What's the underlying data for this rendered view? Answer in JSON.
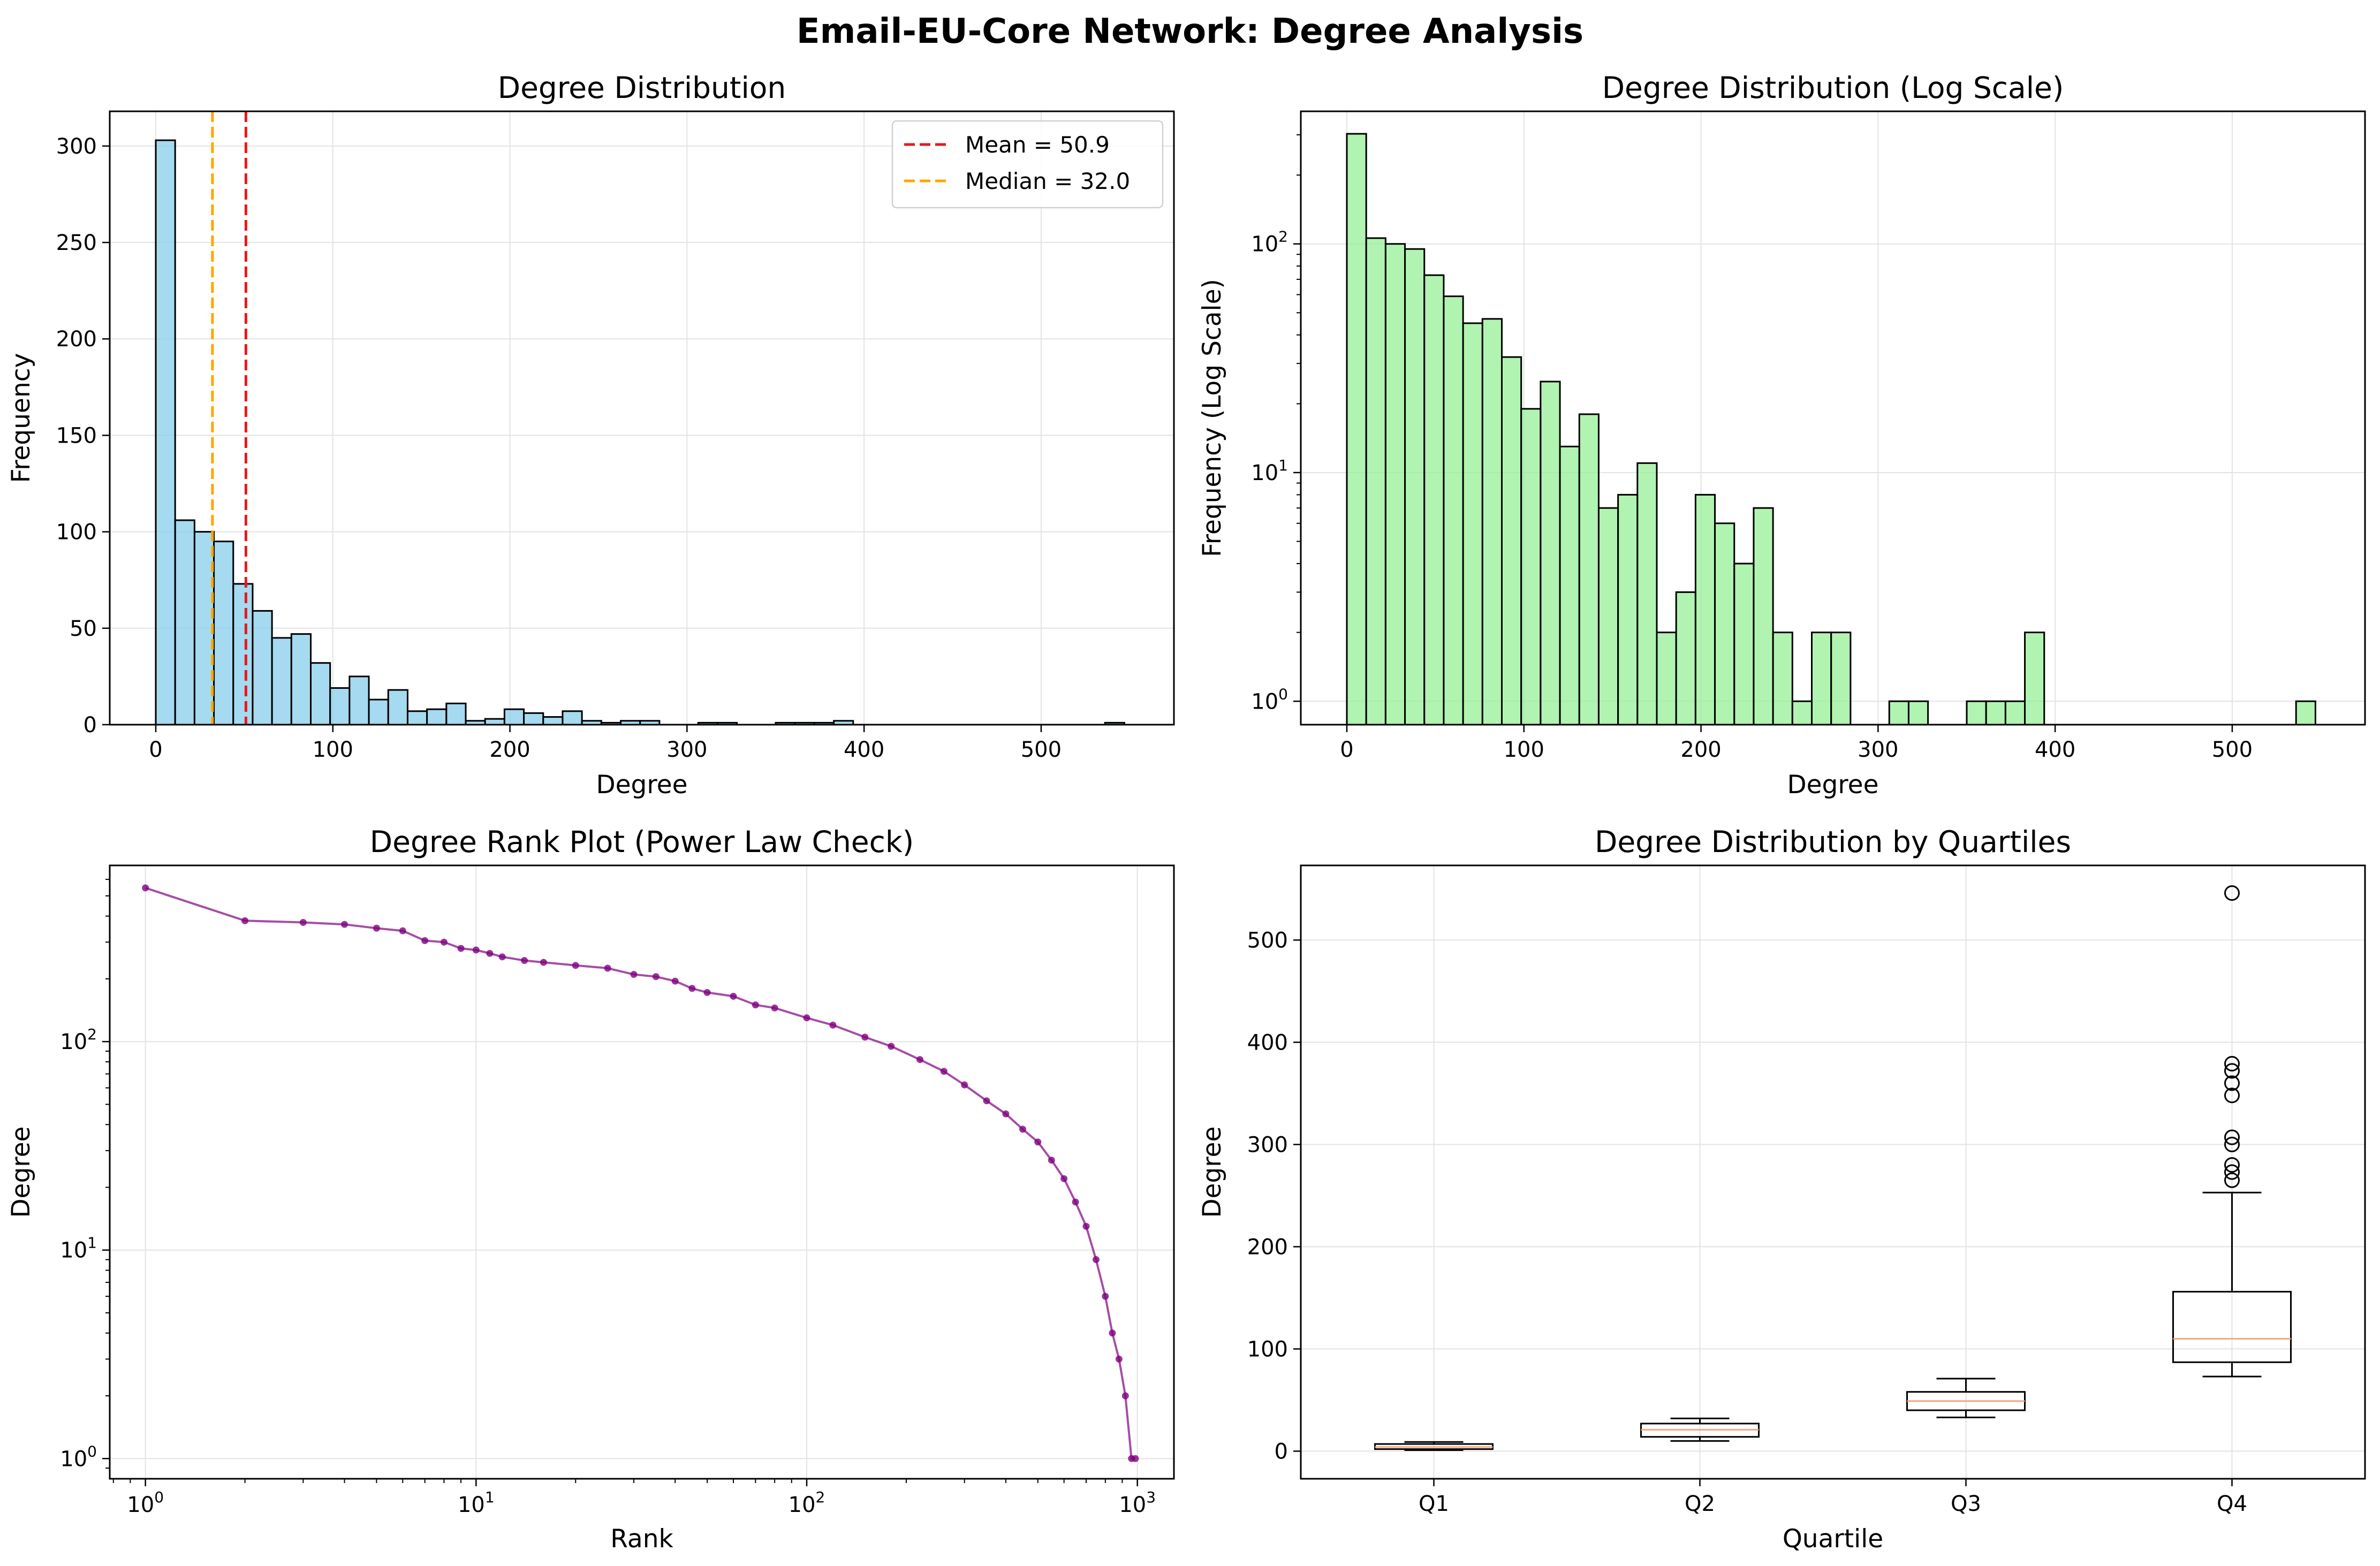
{
  "figure": {
    "title": "Email-EU-Core Network: Degree Analysis"
  },
  "chart_data": [
    {
      "type": "bar",
      "title": "Degree Distribution",
      "xlabel": "Degree",
      "ylabel": "Frequency",
      "yscale": "linear",
      "xlim": [
        -26,
        575
      ],
      "ylim": [
        0,
        318
      ],
      "grid": true,
      "bin_width": 10.94,
      "bin_start": 0,
      "bar_color": "#87ceeb",
      "edge_color": "#000000",
      "values": [
        303,
        106,
        100,
        95,
        73,
        59,
        45,
        47,
        32,
        19,
        25,
        13,
        18,
        7,
        8,
        11,
        2,
        3,
        8,
        6,
        4,
        7,
        2,
        1,
        2,
        2,
        0,
        0,
        1,
        1,
        0,
        0,
        1,
        1,
        1,
        2,
        0,
        0,
        0,
        0,
        0,
        0,
        0,
        0,
        0,
        0,
        0,
        0,
        0,
        1
      ],
      "xticks": [
        "0",
        "100",
        "200",
        "300",
        "400",
        "500"
      ],
      "yticks": [
        "0",
        "50",
        "100",
        "150",
        "200",
        "250",
        "300"
      ],
      "vlines": [
        {
          "label": "Mean = 50.9",
          "value": 50.9,
          "color": "#e41a1c",
          "style": "dashed"
        },
        {
          "label": "Median = 32.0",
          "value": 32.0,
          "color": "#ffa500",
          "style": "dashed"
        }
      ],
      "legend_position": "top-right"
    },
    {
      "type": "bar",
      "title": "Degree Distribution (Log Scale)",
      "xlabel": "Degree",
      "ylabel": "Frequency (Log Scale)",
      "yscale": "log",
      "xlim": [
        -26,
        575
      ],
      "ylim": [
        0.79,
        380
      ],
      "grid": true,
      "bin_width": 10.94,
      "bin_start": 0,
      "bar_color": "#90ee90",
      "edge_color": "#000000",
      "values": [
        303,
        106,
        100,
        95,
        73,
        59,
        45,
        47,
        32,
        19,
        25,
        13,
        18,
        7,
        8,
        11,
        2,
        3,
        8,
        6,
        4,
        7,
        2,
        1,
        2,
        2,
        0,
        0,
        1,
        1,
        0,
        0,
        1,
        1,
        1,
        2,
        0,
        0,
        0,
        0,
        0,
        0,
        0,
        0,
        0,
        0,
        0,
        0,
        0,
        1
      ],
      "xticks": [
        "0",
        "100",
        "200",
        "300",
        "400",
        "500"
      ],
      "yticks": [
        {
          "base": "10",
          "exp": "0"
        },
        {
          "base": "10",
          "exp": "1"
        },
        {
          "base": "10",
          "exp": "2"
        }
      ]
    },
    {
      "type": "line",
      "title": "Degree Rank Plot (Power Law Check)",
      "xlabel": "Rank",
      "ylabel": "Degree",
      "xscale": "log",
      "yscale": "log",
      "xlim": [
        0.78,
        1290
      ],
      "ylim": [
        0.8,
        700
      ],
      "grid": true,
      "color": "#800080",
      "points": [
        [
          1,
          546
        ],
        [
          2,
          380
        ],
        [
          3,
          373
        ],
        [
          4,
          365
        ],
        [
          5,
          350
        ],
        [
          6,
          340
        ],
        [
          7,
          305
        ],
        [
          8,
          300
        ],
        [
          9,
          280
        ],
        [
          10,
          275
        ],
        [
          11,
          265
        ],
        [
          12,
          255
        ],
        [
          14,
          245
        ],
        [
          16,
          240
        ],
        [
          20,
          232
        ],
        [
          25,
          225
        ],
        [
          30,
          210
        ],
        [
          35,
          205
        ],
        [
          40,
          195
        ],
        [
          45,
          180
        ],
        [
          50,
          172
        ],
        [
          60,
          165
        ],
        [
          70,
          150
        ],
        [
          80,
          145
        ],
        [
          100,
          130
        ],
        [
          120,
          120
        ],
        [
          150,
          105
        ],
        [
          180,
          95
        ],
        [
          220,
          82
        ],
        [
          260,
          72
        ],
        [
          300,
          62
        ],
        [
          350,
          52
        ],
        [
          400,
          45
        ],
        [
          450,
          38
        ],
        [
          500,
          33
        ],
        [
          550,
          27
        ],
        [
          600,
          22
        ],
        [
          650,
          17
        ],
        [
          700,
          13
        ],
        [
          750,
          9
        ],
        [
          800,
          6
        ],
        [
          840,
          4
        ],
        [
          880,
          3
        ],
        [
          920,
          2
        ],
        [
          960,
          1
        ],
        [
          986,
          1
        ]
      ],
      "xticks": [
        {
          "base": "10",
          "exp": "0"
        },
        {
          "base": "10",
          "exp": "1"
        },
        {
          "base": "10",
          "exp": "2"
        },
        {
          "base": "10",
          "exp": "3"
        }
      ],
      "yticks": [
        {
          "base": "10",
          "exp": "0"
        },
        {
          "base": "10",
          "exp": "1"
        },
        {
          "base": "10",
          "exp": "2"
        }
      ]
    },
    {
      "type": "box",
      "title": "Degree Distribution by Quartiles",
      "xlabel": "Quartile",
      "ylabel": "Degree",
      "ylim": [
        -27,
        573
      ],
      "grid": true,
      "categories": [
        "Q1",
        "Q2",
        "Q3",
        "Q4"
      ],
      "median_color": "#f4a582",
      "boxes": [
        {
          "min": 1,
          "q1": 2,
          "median": 4,
          "q3": 7,
          "max": 9,
          "outliers": []
        },
        {
          "min": 10,
          "q1": 14,
          "median": 21,
          "q3": 27,
          "max": 32,
          "outliers": []
        },
        {
          "min": 33,
          "q1": 40,
          "median": 49,
          "q3": 58,
          "max": 71,
          "outliers": []
        },
        {
          "min": 73,
          "q1": 87,
          "median": 110,
          "q3": 156,
          "max": 253,
          "outliers": [
            546,
            379,
            372,
            360,
            348,
            307,
            300,
            280,
            273,
            265
          ]
        }
      ],
      "yticks": [
        "0",
        "100",
        "200",
        "300",
        "400",
        "500"
      ]
    }
  ]
}
